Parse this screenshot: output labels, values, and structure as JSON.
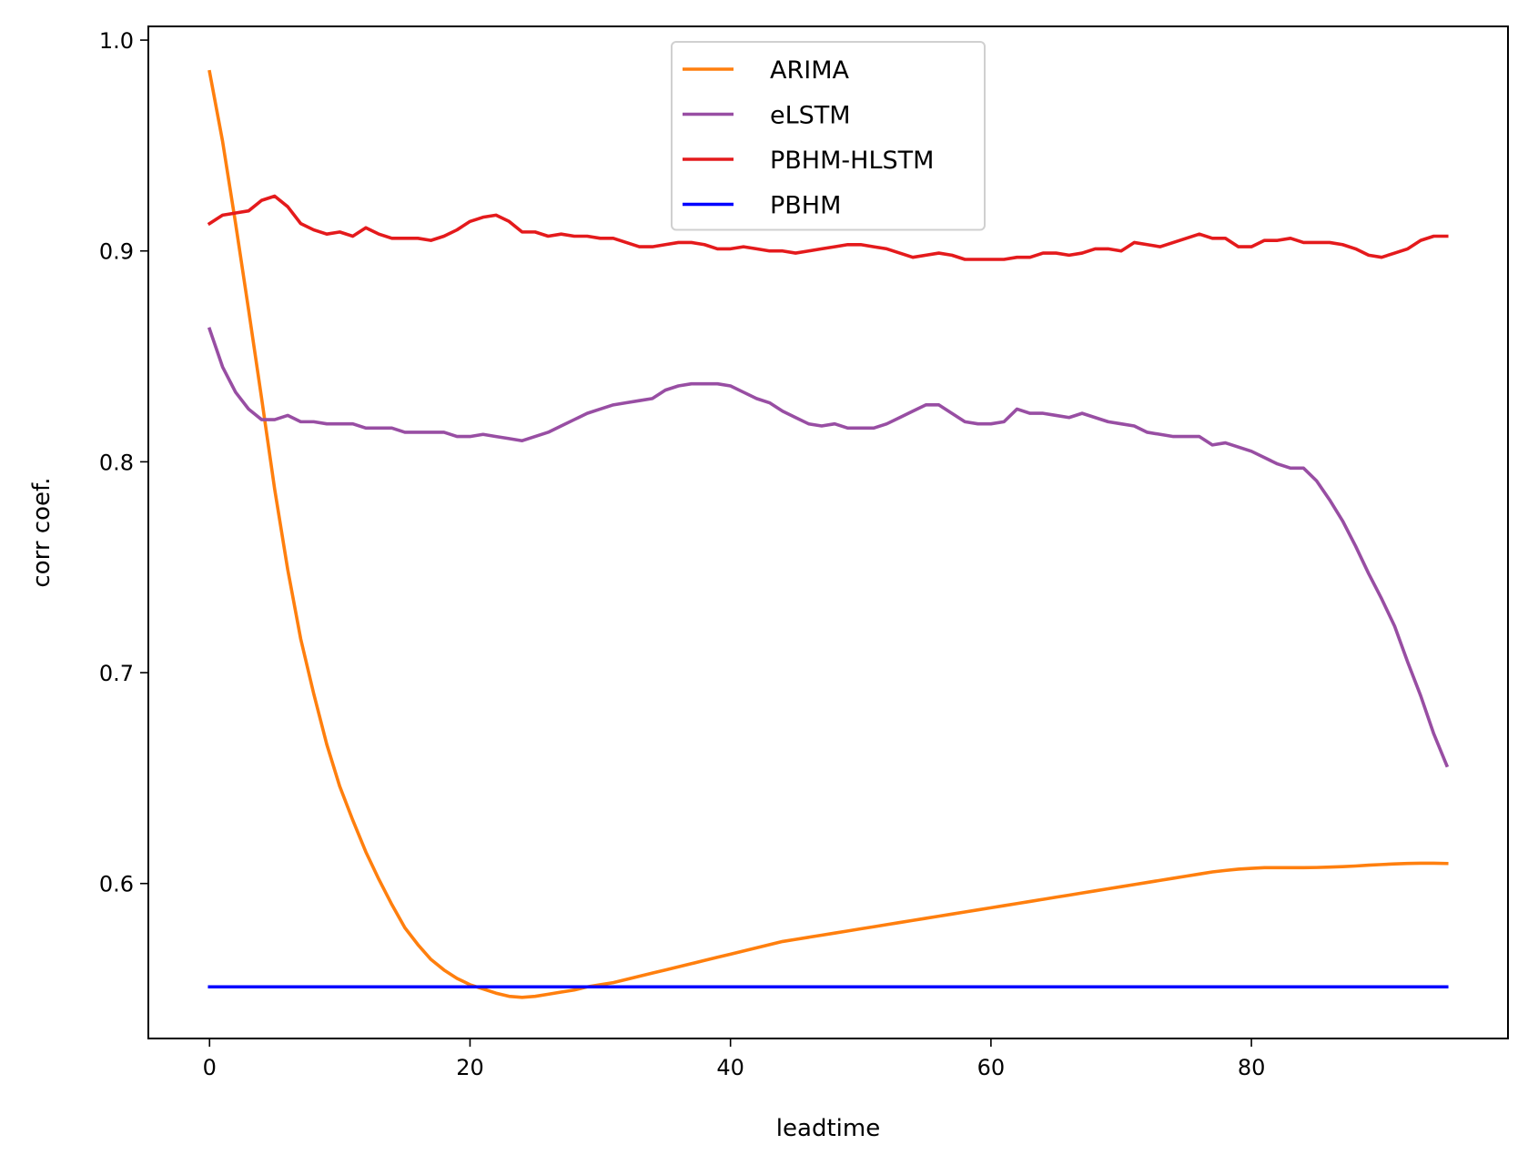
{
  "chart_data": {
    "type": "line",
    "xlabel": "leadtime",
    "ylabel": "corr coef.",
    "xlim": [
      -4.7,
      99.7
    ],
    "ylim": [
      0.5265,
      1.0065
    ],
    "xticks": [
      0,
      20,
      40,
      60,
      80
    ],
    "yticks": [
      0.6,
      0.7,
      0.8,
      0.9,
      1.0
    ],
    "ytick_labels": [
      "0.6",
      "0.7",
      "0.8",
      "0.9",
      "1.0"
    ],
    "grid": false,
    "legend_position": "top-center",
    "x": [
      0,
      1,
      2,
      3,
      4,
      5,
      6,
      7,
      8,
      9,
      10,
      11,
      12,
      13,
      14,
      15,
      16,
      17,
      18,
      19,
      20,
      21,
      22,
      23,
      24,
      25,
      26,
      27,
      28,
      29,
      30,
      31,
      32,
      33,
      34,
      35,
      36,
      37,
      38,
      39,
      40,
      41,
      42,
      43,
      44,
      45,
      46,
      47,
      48,
      49,
      50,
      51,
      52,
      53,
      54,
      55,
      56,
      57,
      58,
      59,
      60,
      61,
      62,
      63,
      64,
      65,
      66,
      67,
      68,
      69,
      70,
      71,
      72,
      73,
      74,
      75,
      76,
      77,
      78,
      79,
      80,
      81,
      82,
      83,
      84,
      85,
      86,
      87,
      88,
      89,
      90,
      91,
      92,
      93,
      94,
      95
    ],
    "series": [
      {
        "name": "ARIMA",
        "color": "#ff7f0e",
        "values": [
          0.985,
          0.952,
          0.913,
          0.872,
          0.83,
          0.787,
          0.749,
          0.716,
          0.69,
          0.666,
          0.646,
          0.63,
          0.615,
          0.602,
          0.59,
          0.579,
          0.571,
          0.564,
          0.559,
          0.555,
          0.552,
          0.55,
          0.548,
          0.5465,
          0.546,
          0.5465,
          0.5475,
          0.5485,
          0.5495,
          0.551,
          0.552,
          0.553,
          0.5545,
          0.556,
          0.5575,
          0.559,
          0.5605,
          0.562,
          0.5635,
          0.565,
          0.5665,
          0.568,
          0.5695,
          0.571,
          0.5725,
          0.5735,
          0.5745,
          0.5755,
          0.5765,
          0.5775,
          0.5785,
          0.5795,
          0.5805,
          0.5815,
          0.5825,
          0.5835,
          0.5845,
          0.5855,
          0.5865,
          0.5875,
          0.5885,
          0.5895,
          0.5905,
          0.5915,
          0.5925,
          0.5935,
          0.5945,
          0.5955,
          0.5965,
          0.5975,
          0.5985,
          0.5995,
          0.6005,
          0.6015,
          0.6025,
          0.6035,
          0.6045,
          0.6055,
          0.6062,
          0.6068,
          0.6072,
          0.6075,
          0.6075,
          0.6075,
          0.6075,
          0.6076,
          0.6078,
          0.608,
          0.6083,
          0.6087,
          0.609,
          0.6093,
          0.6095,
          0.6096,
          0.6096,
          0.6095
        ]
      },
      {
        "name": "eLSTM",
        "color": "#984ea3",
        "values": [
          0.863,
          0.845,
          0.833,
          0.825,
          0.82,
          0.82,
          0.822,
          0.819,
          0.819,
          0.818,
          0.818,
          0.818,
          0.816,
          0.816,
          0.816,
          0.814,
          0.814,
          0.814,
          0.814,
          0.812,
          0.812,
          0.813,
          0.812,
          0.811,
          0.81,
          0.812,
          0.814,
          0.817,
          0.82,
          0.823,
          0.825,
          0.827,
          0.828,
          0.829,
          0.83,
          0.834,
          0.836,
          0.837,
          0.837,
          0.837,
          0.836,
          0.833,
          0.83,
          0.828,
          0.824,
          0.821,
          0.818,
          0.817,
          0.818,
          0.816,
          0.816,
          0.816,
          0.818,
          0.821,
          0.824,
          0.827,
          0.827,
          0.823,
          0.819,
          0.818,
          0.818,
          0.819,
          0.825,
          0.823,
          0.823,
          0.822,
          0.821,
          0.823,
          0.821,
          0.819,
          0.818,
          0.817,
          0.814,
          0.813,
          0.812,
          0.812,
          0.812,
          0.808,
          0.809,
          0.807,
          0.805,
          0.802,
          0.799,
          0.797,
          0.797,
          0.791,
          0.782,
          0.772,
          0.76,
          0.747,
          0.735,
          0.722,
          0.705,
          0.689,
          0.671,
          0.656
        ]
      },
      {
        "name": "PBHM-HLSTM",
        "color": "#e41a1c",
        "values": [
          0.913,
          0.917,
          0.918,
          0.919,
          0.924,
          0.926,
          0.921,
          0.913,
          0.91,
          0.908,
          0.909,
          0.907,
          0.911,
          0.908,
          0.906,
          0.906,
          0.906,
          0.905,
          0.907,
          0.91,
          0.914,
          0.916,
          0.917,
          0.914,
          0.909,
          0.909,
          0.907,
          0.908,
          0.907,
          0.907,
          0.906,
          0.906,
          0.904,
          0.902,
          0.902,
          0.903,
          0.904,
          0.904,
          0.903,
          0.901,
          0.901,
          0.902,
          0.901,
          0.9,
          0.9,
          0.899,
          0.9,
          0.901,
          0.902,
          0.903,
          0.903,
          0.902,
          0.901,
          0.899,
          0.897,
          0.898,
          0.899,
          0.898,
          0.896,
          0.896,
          0.896,
          0.896,
          0.897,
          0.897,
          0.899,
          0.899,
          0.898,
          0.899,
          0.901,
          0.901,
          0.9,
          0.904,
          0.903,
          0.902,
          0.904,
          0.906,
          0.908,
          0.906,
          0.906,
          0.902,
          0.902,
          0.905,
          0.905,
          0.906,
          0.904,
          0.904,
          0.904,
          0.903,
          0.901,
          0.898,
          0.897,
          0.899,
          0.901,
          0.905,
          0.907,
          0.907
        ]
      },
      {
        "name": "PBHM",
        "color": "#0000ff",
        "values": [
          0.551,
          0.551,
          0.551,
          0.551,
          0.551,
          0.551,
          0.551,
          0.551,
          0.551,
          0.551,
          0.551,
          0.551,
          0.551,
          0.551,
          0.551,
          0.551,
          0.551,
          0.551,
          0.551,
          0.551,
          0.551,
          0.551,
          0.551,
          0.551,
          0.551,
          0.551,
          0.551,
          0.551,
          0.551,
          0.551,
          0.551,
          0.551,
          0.551,
          0.551,
          0.551,
          0.551,
          0.551,
          0.551,
          0.551,
          0.551,
          0.551,
          0.551,
          0.551,
          0.551,
          0.551,
          0.551,
          0.551,
          0.551,
          0.551,
          0.551,
          0.551,
          0.551,
          0.551,
          0.551,
          0.551,
          0.551,
          0.551,
          0.551,
          0.551,
          0.551,
          0.551,
          0.551,
          0.551,
          0.551,
          0.551,
          0.551,
          0.551,
          0.551,
          0.551,
          0.551,
          0.551,
          0.551,
          0.551,
          0.551,
          0.551,
          0.551,
          0.551,
          0.551,
          0.551,
          0.551,
          0.551,
          0.551,
          0.551,
          0.551,
          0.551,
          0.551,
          0.551,
          0.551,
          0.551,
          0.551,
          0.551,
          0.551,
          0.551,
          0.551,
          0.551,
          0.551
        ]
      }
    ]
  }
}
